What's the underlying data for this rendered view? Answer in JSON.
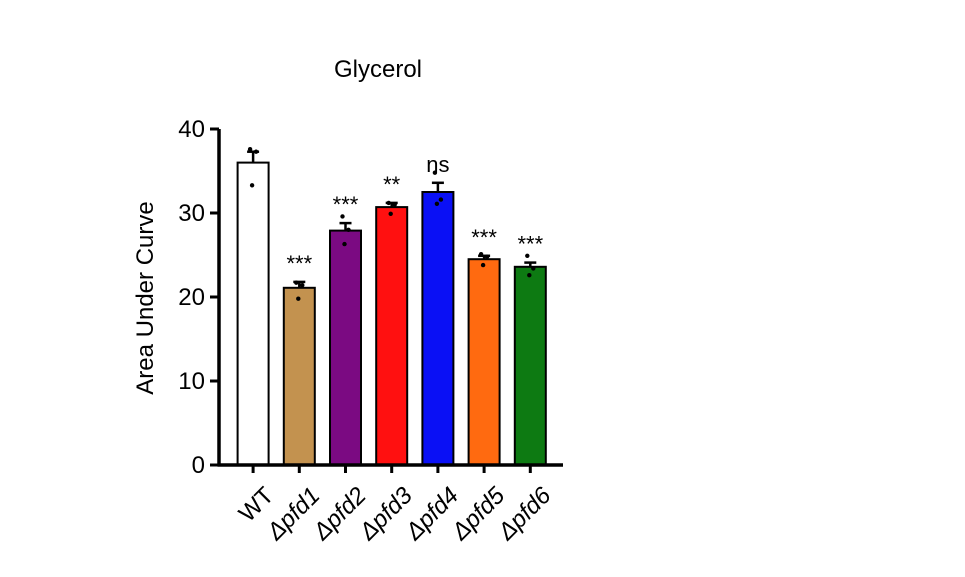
{
  "chart_data": {
    "type": "bar",
    "title": "Glycerol",
    "xlabel": "",
    "ylabel": "Area Under Curve",
    "ylim": [
      0,
      40
    ],
    "yticks": [
      0,
      10,
      20,
      30,
      40
    ],
    "grid": false,
    "legend": "none",
    "categories": [
      "WT",
      "Δpfd1",
      "Δpfd2",
      "Δpfd3",
      "Δpfd4",
      "Δpfd5",
      "Δpfd6"
    ],
    "italic_categories": [
      false,
      true,
      true,
      true,
      true,
      true,
      true
    ],
    "values": [
      36.0,
      21.1,
      27.9,
      30.7,
      32.5,
      24.5,
      23.6
    ],
    "errors": [
      1.3,
      0.7,
      0.9,
      0.5,
      1.1,
      0.4,
      0.5
    ],
    "points": [
      [
        37.6,
        37.3,
        33.3
      ],
      [
        21.7,
        21.4,
        19.8
      ],
      [
        29.6,
        28.0,
        26.3
      ],
      [
        31.2,
        31.0,
        29.9
      ],
      [
        34.8,
        31.6,
        31.1
      ],
      [
        25.1,
        24.8,
        23.8
      ],
      [
        24.9,
        23.4,
        22.6
      ]
    ],
    "colors": [
      "#ffffff",
      "#c3924f",
      "#7b0a82",
      "#ff1010",
      "#0a10f5",
      "#ff6a10",
      "#0d7a12"
    ],
    "significance": [
      "",
      "***",
      "***",
      "**",
      "ns",
      "***",
      "***"
    ]
  }
}
